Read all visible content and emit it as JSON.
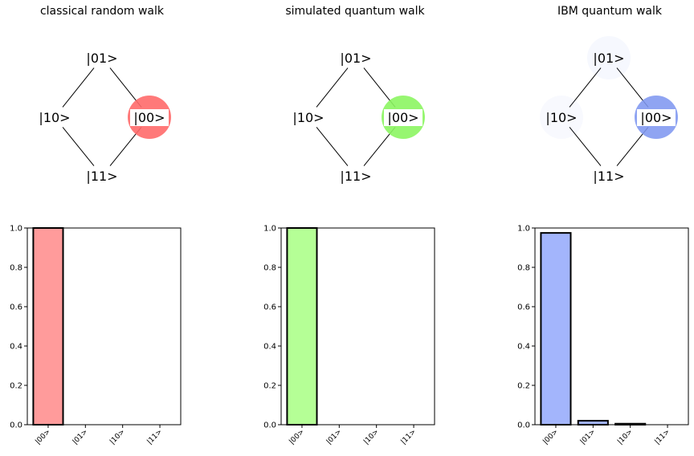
{
  "panels": [
    {
      "title": "classical random walk",
      "color": "#ff6a6a",
      "bar_color": "#ff9b9b",
      "graph": {
        "nodes": [
          "|01>",
          "|10>",
          "|00>",
          "|11>"
        ],
        "occupation": {
          "|00>": 1.0,
          "|01>": 0.0,
          "|10>": 0.0,
          "|11>": 0.0
        }
      }
    },
    {
      "title": "simulated quantum walk",
      "color": "#8cf562",
      "bar_color": "#b5ff96",
      "graph": {
        "nodes": [
          "|01>",
          "|10>",
          "|00>",
          "|11>"
        ],
        "occupation": {
          "|00>": 1.0,
          "|01>": 0.0,
          "|10>": 0.0,
          "|11>": 0.0
        }
      }
    },
    {
      "title": "IBM quantum walk",
      "color": "#7f97f0",
      "bar_color": "#a3b5fc",
      "graph": {
        "nodes": [
          "|01>",
          "|10>",
          "|00>",
          "|11>"
        ],
        "occupation": {
          "|00>": 0.975,
          "|01>": 0.02,
          "|10>": 0.005,
          "|11>": 0.0
        }
      }
    }
  ],
  "chart_data": [
    {
      "type": "bar",
      "categories": [
        "|00>",
        "|01>",
        "|10>",
        "|11>"
      ],
      "values": [
        1.0,
        0.0,
        0.0,
        0.0
      ],
      "ylim": [
        0,
        1.0
      ],
      "yticks": [
        "0.0",
        "0.2",
        "0.4",
        "0.6",
        "0.8",
        "1.0"
      ],
      "grid": false
    },
    {
      "type": "bar",
      "categories": [
        "|00>",
        "|01>",
        "|10>",
        "|11>"
      ],
      "values": [
        1.0,
        0.0,
        0.0,
        0.0
      ],
      "ylim": [
        0,
        1.0
      ],
      "yticks": [
        "0.0",
        "0.2",
        "0.4",
        "0.6",
        "0.8",
        "1.0"
      ],
      "grid": false
    },
    {
      "type": "bar",
      "categories": [
        "|00>",
        "|01>",
        "|10>",
        "|11>"
      ],
      "values": [
        0.975,
        0.02,
        0.005,
        0.0
      ],
      "ylim": [
        0,
        1.0
      ],
      "yticks": [
        "0.0",
        "0.2",
        "0.4",
        "0.6",
        "0.8",
        "1.0"
      ],
      "grid": false
    }
  ]
}
